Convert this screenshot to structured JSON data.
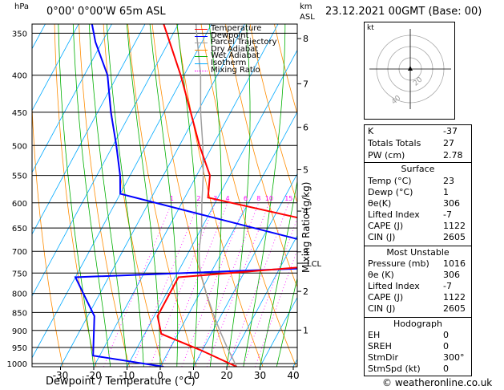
{
  "header": {
    "unit_left": "hPa",
    "location": "0°00' 0°00'W 65m ASL",
    "km": "km",
    "asl": "ASL",
    "datetime": "23.12.2021 00GMT (Base: 00)"
  },
  "legend": [
    {
      "label": "Temperature",
      "color": "#ff0000",
      "style": "solid"
    },
    {
      "label": "Dewpoint",
      "color": "#0000ff",
      "style": "solid"
    },
    {
      "label": "Parcel Trajectory",
      "color": "#a0a0a0",
      "style": "solid"
    },
    {
      "label": "Dry Adiabat",
      "color": "#ff8c00",
      "style": "solid"
    },
    {
      "label": "Wet Adiabat",
      "color": "#00b000",
      "style": "solid"
    },
    {
      "label": "Isotherm",
      "color": "#00aaff",
      "style": "solid"
    },
    {
      "label": "Mixing Ratio",
      "color": "#ff00ff",
      "style": "dotted"
    }
  ],
  "chart_data": {
    "type": "line",
    "xlabel": "Dewpoint / Temperature (°C)",
    "ylabel": "hPa",
    "right_axis_label": "Mixing Ratio (g/kg)",
    "xlim": [
      -35,
      40
    ],
    "x_ticks": [
      "-30",
      "-20",
      "-10",
      "0",
      "10",
      "20",
      "30",
      "40"
    ],
    "x_tick_values": [
      -30,
      -20,
      -10,
      0,
      10,
      20,
      30,
      40
    ],
    "y_log_scale": true,
    "pressure_ticks": [
      "350",
      "400",
      "450",
      "500",
      "550",
      "600",
      "650",
      "700",
      "750",
      "800",
      "850",
      "900",
      "950",
      "1000"
    ],
    "pressure_tick_values": [
      350,
      400,
      450,
      500,
      550,
      600,
      650,
      700,
      750,
      800,
      850,
      900,
      950,
      1000
    ],
    "km_ticks": [
      {
        "label": "8",
        "p": 356
      },
      {
        "label": "7",
        "p": 411
      },
      {
        "label": "6",
        "p": 472
      },
      {
        "label": "5",
        "p": 540
      },
      {
        "label": "4",
        "p": 616
      },
      {
        "label": "3",
        "p": 701
      },
      {
        "label": "2",
        "p": 795
      },
      {
        "label": "1",
        "p": 899
      }
    ],
    "lcl_label": "LCL",
    "lcl_p": 727,
    "mixing_ratio_labels": [
      "1",
      "2",
      "3",
      "4",
      "6",
      "8",
      "10",
      "15",
      "20",
      "25"
    ],
    "mixing_ratio_values": [
      1,
      2,
      3,
      4,
      6,
      8,
      10,
      15,
      20,
      25
    ],
    "series": [
      {
        "name": "Temperature",
        "color": "#ff0000",
        "points": [
          [
            1010,
            23
          ],
          [
            960,
            10
          ],
          [
            910,
            -5
          ],
          [
            860,
            -9
          ],
          [
            760,
            -9
          ],
          [
            727,
            40
          ],
          [
            660,
            40
          ],
          [
            590,
            -13
          ],
          [
            550,
            -16
          ],
          [
            500,
            -24
          ],
          [
            450,
            -32
          ],
          [
            400,
            -41
          ],
          [
            350,
            -52
          ],
          [
            310,
            -62
          ]
        ]
      },
      {
        "name": "Dewpoint",
        "color": "#0000ff",
        "points": [
          [
            1010,
            1
          ],
          [
            975,
            -22
          ],
          [
            860,
            -28
          ],
          [
            760,
            -40
          ],
          [
            735,
            40
          ],
          [
            705,
            40
          ],
          [
            583,
            -40
          ],
          [
            550,
            -43
          ],
          [
            500,
            -49
          ],
          [
            450,
            -56
          ],
          [
            400,
            -63
          ],
          [
            360,
            -72
          ],
          [
            330,
            -78
          ],
          [
            305,
            -85
          ]
        ]
      },
      {
        "name": "Parcel Trajectory",
        "color": "#a0a0a0",
        "points": [
          [
            1010,
            23
          ],
          [
            950,
            17
          ],
          [
            900,
            12
          ],
          [
            850,
            7
          ],
          [
            800,
            2
          ],
          [
            750,
            -3
          ],
          [
            727,
            -5
          ],
          [
            700,
            -7
          ],
          [
            650,
            -10
          ],
          [
            600,
            -14
          ],
          [
            550,
            -18
          ],
          [
            500,
            -23
          ],
          [
            450,
            -29
          ],
          [
            400,
            -35
          ],
          [
            350,
            -43
          ],
          [
            310,
            -50
          ]
        ]
      }
    ],
    "isotherms": [
      -100,
      -90,
      -80,
      -70,
      -60,
      -50,
      -40,
      -30,
      -20,
      -10,
      0,
      10,
      20,
      30,
      40
    ],
    "dry_adiabats": [
      -40,
      -30,
      -20,
      -10,
      0,
      10,
      20,
      30,
      40,
      50,
      60,
      70,
      80,
      90,
      100,
      110,
      120,
      130,
      140,
      150,
      160,
      170,
      180
    ],
    "wet_adiabats": [
      -20,
      -15,
      -10,
      -5,
      0,
      5,
      10,
      15,
      20,
      25,
      30,
      35
    ]
  },
  "hodograph": {
    "unit": "kt",
    "ring_labels": [
      "20",
      "40"
    ]
  },
  "indices": {
    "top": [
      {
        "key": "K",
        "value": "-37"
      },
      {
        "key": "Totals Totals",
        "value": "27"
      },
      {
        "key": "PW (cm)",
        "value": "2.78"
      }
    ],
    "surface_title": "Surface",
    "surface": [
      {
        "key": "Temp (°C)",
        "value": "23"
      },
      {
        "key": "Dewp (°C)",
        "value": "1"
      },
      {
        "key": "θe(K)",
        "value": "306"
      },
      {
        "key": "Lifted Index",
        "value": "-7"
      },
      {
        "key": "CAPE (J)",
        "value": "1122"
      },
      {
        "key": "CIN (J)",
        "value": "2605"
      }
    ],
    "mu_title": "Most Unstable",
    "mu": [
      {
        "key": "Pressure (mb)",
        "value": "1016"
      },
      {
        "key": "θe (K)",
        "value": "306"
      },
      {
        "key": "Lifted Index",
        "value": "-7"
      },
      {
        "key": "CAPE (J)",
        "value": "1122"
      },
      {
        "key": "CIN (J)",
        "value": "2605"
      }
    ],
    "hodo_title": "Hodograph",
    "hodo": [
      {
        "key": "EH",
        "value": "0"
      },
      {
        "key": "SREH",
        "value": "0"
      },
      {
        "key": "StmDir",
        "value": "300°"
      },
      {
        "key": "StmSpd (kt)",
        "value": "0"
      }
    ]
  },
  "footer": {
    "copyright": "© weatheronline.co.uk"
  }
}
